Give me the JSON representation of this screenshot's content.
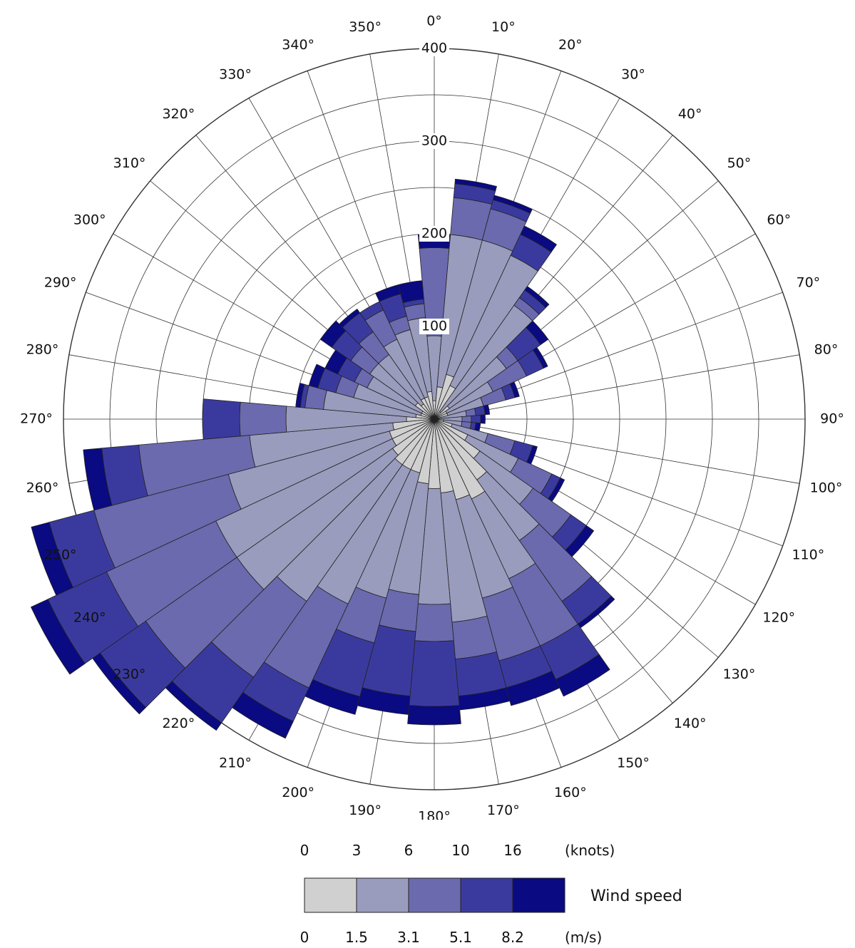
{
  "chart_data": {
    "type": "wind-rose",
    "angular_ticks": [
      "0°",
      "10°",
      "20°",
      "30°",
      "40°",
      "50°",
      "60°",
      "70°",
      "80°",
      "90°",
      "100°",
      "110°",
      "120°",
      "130°",
      "140°",
      "150°",
      "160°",
      "170°",
      "180°",
      "190°",
      "200°",
      "210°",
      "220°",
      "230°",
      "240°",
      "250°",
      "260°",
      "270°",
      "280°",
      "290°",
      "300°",
      "310°",
      "320°",
      "330°",
      "340°",
      "350°"
    ],
    "radial_ticks": [
      "100",
      "200",
      "300",
      "400"
    ],
    "rmax": 400,
    "sector_width_deg": 10,
    "directions": [
      0,
      10,
      20,
      30,
      40,
      50,
      60,
      70,
      80,
      90,
      100,
      110,
      120,
      130,
      140,
      150,
      160,
      170,
      180,
      190,
      200,
      210,
      220,
      230,
      240,
      250,
      260,
      270,
      280,
      290,
      300,
      310,
      320,
      330,
      340,
      350
    ],
    "bins": [
      {
        "color": "#d0d0d0"
      },
      {
        "color": "#9a9cbd"
      },
      {
        "color": "#6b6aae"
      },
      {
        "color": "#3a3a9e"
      },
      {
        "color": "#0a0a82"
      }
    ],
    "cumulative_totals": [
      [
        20,
        90,
        185,
        185,
        200
      ],
      [
        35,
        200,
        240,
        255,
        260
      ],
      [
        50,
        200,
        235,
        245,
        250
      ],
      [
        40,
        195,
        195,
        220,
        230
      ],
      [
        10,
        150,
        160,
        170,
        175
      ],
      [
        20,
        95,
        110,
        140,
        150
      ],
      [
        15,
        70,
        110,
        130,
        135
      ],
      [
        15,
        55,
        80,
        90,
        95
      ],
      [
        5,
        35,
        45,
        55,
        60
      ],
      [
        5,
        30,
        40,
        50,
        55
      ],
      [
        10,
        30,
        40,
        45,
        50
      ],
      [
        20,
        60,
        90,
        110,
        115
      ],
      [
        40,
        100,
        140,
        150,
        155
      ],
      [
        60,
        130,
        180,
        200,
        210
      ],
      [
        80,
        160,
        240,
        270,
        275
      ],
      [
        95,
        190,
        270,
        310,
        330
      ],
      [
        90,
        200,
        270,
        300,
        320
      ],
      [
        80,
        220,
        260,
        300,
        315
      ],
      [
        75,
        200,
        240,
        310,
        330
      ],
      [
        70,
        190,
        230,
        300,
        320
      ],
      [
        60,
        200,
        250,
        310,
        330
      ],
      [
        60,
        220,
        320,
        360,
        380
      ],
      [
        60,
        240,
        340,
        400,
        410
      ],
      [
        55,
        260,
        380,
        440,
        450
      ],
      [
        50,
        260,
        390,
        460,
        480
      ],
      [
        50,
        230,
        380,
        430,
        450
      ],
      [
        45,
        200,
        320,
        360,
        380
      ],
      [
        30,
        160,
        210,
        250,
        250
      ],
      [
        20,
        120,
        140,
        145,
        150
      ],
      [
        15,
        90,
        110,
        130,
        140
      ],
      [
        15,
        80,
        95,
        115,
        130
      ],
      [
        25,
        85,
        110,
        135,
        150
      ],
      [
        20,
        85,
        115,
        140,
        145
      ],
      [
        25,
        95,
        130,
        140,
        140
      ],
      [
        25,
        100,
        115,
        140,
        150
      ],
      [
        30,
        110,
        125,
        130,
        150
      ]
    ],
    "legend": {
      "title": "Wind speed",
      "knots_labels": [
        "0",
        "3",
        "6",
        "10",
        "16"
      ],
      "knots_unit": "(knots)",
      "ms_labels": [
        "0",
        "1.5",
        "3.1",
        "5.1",
        "8.2"
      ],
      "ms_unit": "(m/s)"
    }
  }
}
